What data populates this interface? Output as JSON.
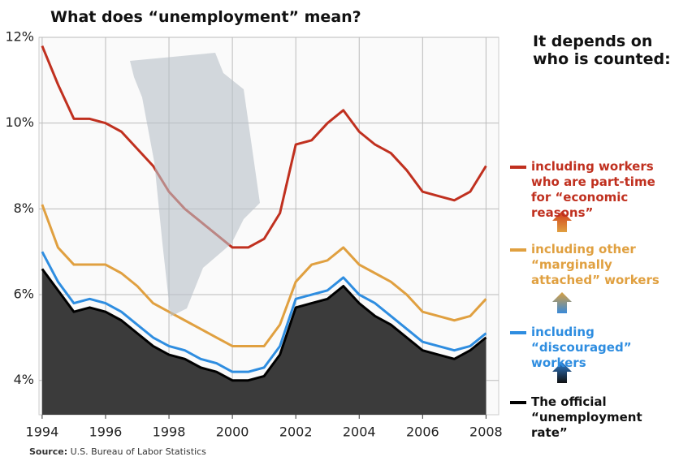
{
  "chart_data": {
    "type": "line",
    "title": "What does “unemployment” mean?",
    "annotation": "It depends on who is counted:",
    "source_label": "Source:",
    "source": "U.S. Bureau of Labor Statistics",
    "x": [
      1994,
      1994.5,
      1995,
      1995.5,
      1996,
      1996.5,
      1997,
      1997.5,
      1998,
      1998.5,
      1999,
      1999.5,
      2000,
      2000.5,
      2001,
      2001.5,
      2002,
      2002.5,
      2003,
      2003.5,
      2004,
      2004.5,
      2005,
      2005.5,
      2006,
      2006.5,
      2007,
      2007.5,
      2008
    ],
    "series": [
      {
        "name": "including workers who are part-time for “economic reasons”",
        "color": "#c0301f",
        "values": [
          11.8,
          10.9,
          10.1,
          10.1,
          10.0,
          9.8,
          9.4,
          9.0,
          8.4,
          8.0,
          7.7,
          7.4,
          7.1,
          7.1,
          7.3,
          7.9,
          9.5,
          9.6,
          10.0,
          10.3,
          9.8,
          9.5,
          9.3,
          8.9,
          8.4,
          8.3,
          8.2,
          8.4,
          9.0
        ]
      },
      {
        "name": "including other “marginally attached” workers",
        "color": "#e0a040",
        "values": [
          8.1,
          7.1,
          6.7,
          6.7,
          6.7,
          6.5,
          6.2,
          5.8,
          5.6,
          5.4,
          5.2,
          5.0,
          4.8,
          4.8,
          4.8,
          5.3,
          6.3,
          6.7,
          6.8,
          7.1,
          6.7,
          6.5,
          6.3,
          6.0,
          5.6,
          5.5,
          5.4,
          5.5,
          5.9
        ]
      },
      {
        "name": "including “discouraged” workers",
        "color": "#2e8de0",
        "values": [
          7.0,
          6.3,
          5.8,
          5.9,
          5.8,
          5.6,
          5.3,
          5.0,
          4.8,
          4.7,
          4.5,
          4.4,
          4.2,
          4.2,
          4.3,
          4.8,
          5.9,
          6.0,
          6.1,
          6.4,
          6.0,
          5.8,
          5.5,
          5.2,
          4.9,
          4.8,
          4.7,
          4.8,
          5.1
        ]
      },
      {
        "name": "The official “unemployment rate”",
        "color": "#000000",
        "area": true,
        "values": [
          6.6,
          6.1,
          5.6,
          5.7,
          5.6,
          5.4,
          5.1,
          4.8,
          4.6,
          4.5,
          4.3,
          4.2,
          4.0,
          4.0,
          4.1,
          4.6,
          5.7,
          5.8,
          5.9,
          6.2,
          5.8,
          5.5,
          5.3,
          5.0,
          4.7,
          4.6,
          4.5,
          4.7,
          5.0
        ]
      }
    ],
    "xlim": [
      1993.9,
      2008.4
    ],
    "ylim": [
      3.2,
      12
    ],
    "xticks": [
      1994,
      1996,
      1998,
      2000,
      2002,
      2004,
      2006,
      2008
    ],
    "yticks": [
      {
        "value": 4,
        "label": "4%"
      },
      {
        "value": 6,
        "label": "6%"
      },
      {
        "value": 8,
        "label": "8%"
      },
      {
        "value": 10,
        "label": "10%"
      },
      {
        "value": 12,
        "label": "12%"
      }
    ],
    "grid": true
  }
}
